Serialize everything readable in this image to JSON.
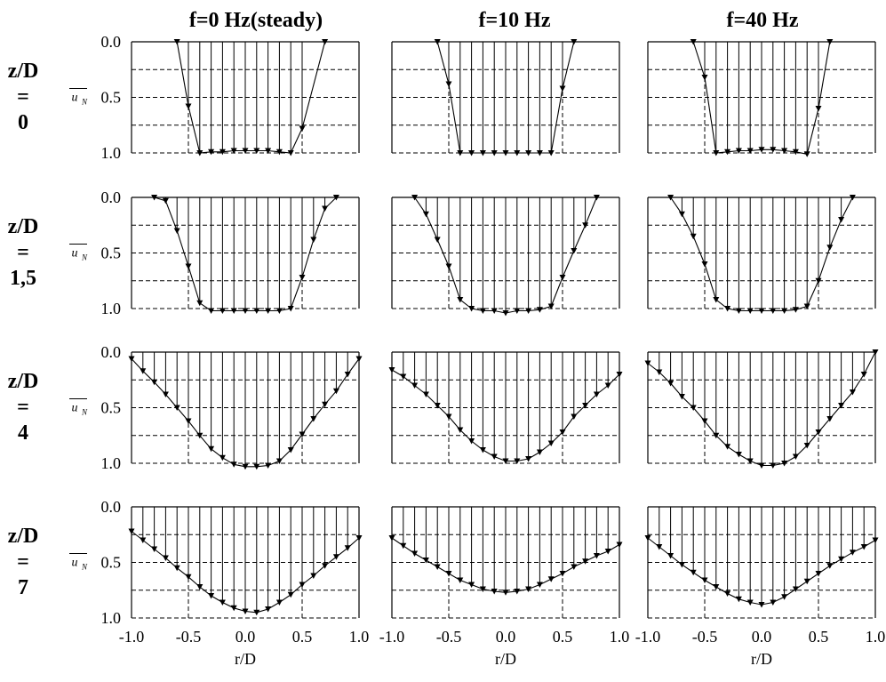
{
  "column_titles": [
    "f=0 Hz(steady)",
    "f=10 Hz",
    "f=40 Hz"
  ],
  "row_labels": [
    [
      "z/D",
      "=",
      "0"
    ],
    [
      "z/D",
      "=",
      "1,5"
    ],
    [
      "z/D",
      "=",
      "4"
    ],
    [
      "z/D",
      "=",
      "7"
    ]
  ],
  "y_axis_label": "u",
  "y_axis_label_sub": "N",
  "y_tick_labels": [
    "0.0",
    "0.5",
    "1.0"
  ],
  "x_tick_labels": [
    "-1.0",
    "-0.5",
    "0.0",
    "0.5",
    "1.0"
  ],
  "x_axis_label": "r/D",
  "chart_data": {
    "type": "line",
    "layout": "4 rows (z/D) x 3 columns (forcing frequency)",
    "x_range": [
      -1.0,
      1.0
    ],
    "ylim": [
      0.0,
      1.0
    ],
    "y_inverted": true,
    "reference_lines_x": [
      -0.5,
      0.5
    ],
    "y_grid": [
      0.25,
      0.5,
      0.75,
      1.0
    ],
    "marker": "down-triangle",
    "panels": [
      {
        "row": "0",
        "column": "f=0 Hz(steady)",
        "x": [
          -0.6,
          -0.5,
          -0.4,
          -0.3,
          -0.2,
          -0.1,
          0.0,
          0.1,
          0.2,
          0.3,
          0.4,
          0.5,
          0.7
        ],
        "y": [
          0.0,
          0.58,
          1.0,
          0.99,
          0.99,
          0.98,
          0.98,
          0.98,
          0.98,
          0.99,
          1.0,
          0.78,
          0.0
        ]
      },
      {
        "row": "0",
        "column": "f=10 Hz",
        "x": [
          -0.6,
          -0.5,
          -0.4,
          -0.3,
          -0.2,
          -0.1,
          0.0,
          0.1,
          0.2,
          0.3,
          0.4,
          0.5,
          0.6
        ],
        "y": [
          0.0,
          0.38,
          1.0,
          1.0,
          1.0,
          1.0,
          1.0,
          1.0,
          1.0,
          1.0,
          1.0,
          0.42,
          0.0
        ]
      },
      {
        "row": "0",
        "column": "f=40 Hz",
        "x": [
          -0.6,
          -0.5,
          -0.4,
          -0.3,
          -0.2,
          -0.1,
          0.0,
          0.1,
          0.2,
          0.3,
          0.4,
          0.5,
          0.6
        ],
        "y": [
          0.0,
          0.32,
          1.0,
          0.99,
          0.98,
          0.98,
          0.97,
          0.97,
          0.98,
          0.99,
          1.01,
          0.6,
          0.0
        ]
      },
      {
        "row": "1,5",
        "column": "f=0 Hz(steady)",
        "x": [
          -0.8,
          -0.7,
          -0.6,
          -0.5,
          -0.4,
          -0.3,
          -0.2,
          -0.1,
          0.0,
          0.1,
          0.2,
          0.3,
          0.4,
          0.5,
          0.6,
          0.7,
          0.8
        ],
        "y": [
          0.0,
          0.03,
          0.3,
          0.62,
          0.95,
          1.02,
          1.02,
          1.02,
          1.02,
          1.02,
          1.02,
          1.02,
          1.0,
          0.72,
          0.38,
          0.1,
          0.0
        ]
      },
      {
        "row": "1,5",
        "column": "f=10 Hz",
        "x": [
          -0.8,
          -0.7,
          -0.6,
          -0.5,
          -0.4,
          -0.3,
          -0.2,
          -0.1,
          0.0,
          0.1,
          0.2,
          0.3,
          0.4,
          0.5,
          0.6,
          0.7,
          0.8
        ],
        "y": [
          0.0,
          0.15,
          0.38,
          0.62,
          0.92,
          1.0,
          1.02,
          1.02,
          1.04,
          1.02,
          1.02,
          1.01,
          0.98,
          0.72,
          0.48,
          0.25,
          0.0
        ]
      },
      {
        "row": "1,5",
        "column": "f=40 Hz",
        "x": [
          -0.8,
          -0.7,
          -0.6,
          -0.5,
          -0.4,
          -0.3,
          -0.2,
          -0.1,
          0.0,
          0.1,
          0.2,
          0.3,
          0.4,
          0.5,
          0.6,
          0.7,
          0.8
        ],
        "y": [
          0.0,
          0.15,
          0.35,
          0.6,
          0.92,
          1.0,
          1.02,
          1.02,
          1.02,
          1.02,
          1.02,
          1.01,
          0.98,
          0.75,
          0.45,
          0.2,
          0.0
        ]
      },
      {
        "row": "4",
        "column": "f=0 Hz(steady)",
        "x": [
          -1.0,
          -0.9,
          -0.8,
          -0.7,
          -0.6,
          -0.5,
          -0.4,
          -0.3,
          -0.2,
          -0.1,
          0.0,
          0.1,
          0.2,
          0.3,
          0.4,
          0.5,
          0.6,
          0.7,
          0.8,
          0.9,
          1.0
        ],
        "y": [
          0.06,
          0.17,
          0.27,
          0.38,
          0.5,
          0.62,
          0.75,
          0.87,
          0.95,
          1.01,
          1.03,
          1.03,
          1.02,
          0.98,
          0.88,
          0.74,
          0.6,
          0.47,
          0.35,
          0.2,
          0.06
        ]
      },
      {
        "row": "4",
        "column": "f=10 Hz",
        "x": [
          -1.0,
          -0.9,
          -0.8,
          -0.7,
          -0.6,
          -0.5,
          -0.4,
          -0.3,
          -0.2,
          -0.1,
          0.0,
          0.1,
          0.2,
          0.3,
          0.4,
          0.5,
          0.6,
          0.7,
          0.8,
          0.9,
          1.0
        ],
        "y": [
          0.16,
          0.22,
          0.3,
          0.38,
          0.48,
          0.58,
          0.7,
          0.8,
          0.88,
          0.94,
          0.98,
          0.98,
          0.96,
          0.9,
          0.82,
          0.72,
          0.58,
          0.48,
          0.38,
          0.3,
          0.2
        ]
      },
      {
        "row": "4",
        "column": "f=40 Hz",
        "x": [
          -1.0,
          -0.9,
          -0.8,
          -0.7,
          -0.6,
          -0.5,
          -0.4,
          -0.3,
          -0.2,
          -0.1,
          0.0,
          0.1,
          0.2,
          0.3,
          0.4,
          0.5,
          0.6,
          0.7,
          0.8,
          0.9,
          1.0
        ],
        "y": [
          0.1,
          0.18,
          0.28,
          0.4,
          0.5,
          0.62,
          0.75,
          0.85,
          0.92,
          0.98,
          1.02,
          1.02,
          1.0,
          0.94,
          0.84,
          0.72,
          0.6,
          0.48,
          0.36,
          0.2,
          0.0
        ]
      },
      {
        "row": "7",
        "column": "f=0 Hz(steady)",
        "x": [
          -1.0,
          -0.9,
          -0.8,
          -0.7,
          -0.6,
          -0.5,
          -0.4,
          -0.3,
          -0.2,
          -0.1,
          0.0,
          0.1,
          0.2,
          0.3,
          0.4,
          0.5,
          0.6,
          0.7,
          0.8,
          0.9,
          1.0
        ],
        "y": [
          0.22,
          0.3,
          0.38,
          0.46,
          0.55,
          0.63,
          0.72,
          0.8,
          0.86,
          0.91,
          0.94,
          0.95,
          0.92,
          0.86,
          0.79,
          0.7,
          0.62,
          0.53,
          0.45,
          0.37,
          0.28
        ]
      },
      {
        "row": "7",
        "column": "f=10 Hz",
        "x": [
          -1.0,
          -0.9,
          -0.8,
          -0.7,
          -0.6,
          -0.5,
          -0.4,
          -0.3,
          -0.2,
          -0.1,
          0.0,
          0.1,
          0.2,
          0.3,
          0.4,
          0.5,
          0.6,
          0.7,
          0.8,
          0.9,
          1.0
        ],
        "y": [
          0.28,
          0.35,
          0.42,
          0.48,
          0.54,
          0.6,
          0.66,
          0.7,
          0.74,
          0.76,
          0.77,
          0.76,
          0.74,
          0.7,
          0.65,
          0.6,
          0.54,
          0.49,
          0.44,
          0.4,
          0.34
        ]
      },
      {
        "row": "7",
        "column": "f=40 Hz",
        "x": [
          -1.0,
          -0.9,
          -0.8,
          -0.7,
          -0.6,
          -0.5,
          -0.4,
          -0.3,
          -0.2,
          -0.1,
          0.0,
          0.1,
          0.2,
          0.3,
          0.4,
          0.5,
          0.6,
          0.7,
          0.8,
          0.9,
          1.0
        ],
        "y": [
          0.28,
          0.36,
          0.44,
          0.52,
          0.59,
          0.66,
          0.72,
          0.78,
          0.83,
          0.86,
          0.88,
          0.86,
          0.81,
          0.74,
          0.67,
          0.6,
          0.53,
          0.47,
          0.41,
          0.36,
          0.3
        ]
      }
    ]
  }
}
